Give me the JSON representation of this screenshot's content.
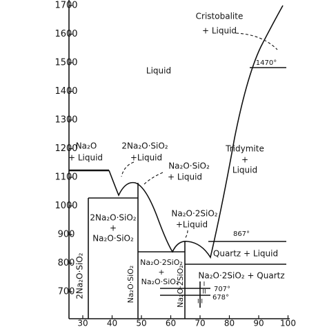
{
  "y_axis": {
    "ticks": [
      1700,
      1600,
      1500,
      1400,
      1300,
      1200,
      1100,
      1000,
      900,
      800,
      700
    ]
  },
  "x_axis": {
    "ticks": [
      30,
      40,
      50,
      60,
      70,
      80,
      90,
      100
    ]
  },
  "labels": [
    "Liquid",
    "Cristobalite",
    "+ Liquid",
    "1470°",
    "Tridymite",
    "+",
    "Liquid",
    "Na₂O",
    "+ Liquid",
    "2Na₂O·SiO₂",
    "+Liquid",
    "Na₂O·SiO₂",
    "+ Liquid",
    "Na₂O·2SiO₂",
    "+Liquid",
    "867°",
    "2Na₂O·SiO₂",
    "+",
    "Na₂O·SiO₂",
    "Quartz + Liquid",
    "Na₂O·2SiO₂",
    "+",
    "Na₂O·SiO₂",
    "Na₂O·2SiO₂ + Quartz",
    "707°",
    "678°",
    "I",
    "II",
    "III",
    "2Na₂O·SiO₂",
    "Na₂O·SiO₂",
    "Na₂O·2SiO₂"
  ]
}
